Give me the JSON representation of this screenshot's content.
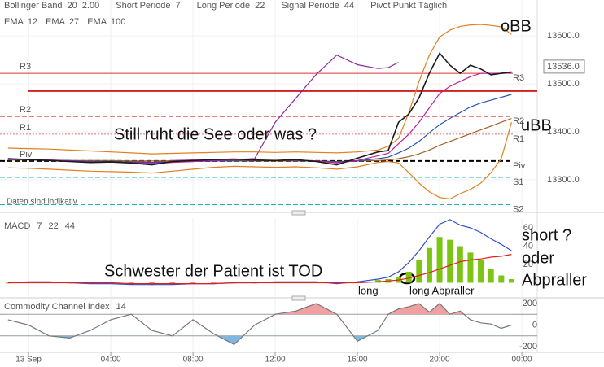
{
  "chart_data": [
    {
      "type": "line",
      "header": [
        {
          "label": "Bollinger Band",
          "params": [
            20,
            "2.00"
          ],
          "param_color": "#e08020"
        },
        {
          "label": "Short Periode",
          "params": [
            7
          ],
          "param_color": "#555555"
        },
        {
          "label": "Long Periode",
          "params": [
            22
          ],
          "param_color": "#555555"
        },
        {
          "label": "Signal Periode",
          "params": [
            44
          ],
          "param_color": "#555555"
        },
        {
          "label": "Pivot Punkt Täglich"
        }
      ],
      "x": [
        -1,
        0,
        1,
        2,
        3,
        4,
        5,
        6,
        7,
        8,
        9,
        10,
        11,
        12,
        13,
        14,
        15,
        16,
        17,
        17.5,
        18,
        18.5,
        19,
        19.5,
        20,
        20.5,
        21,
        21.5,
        22,
        22.5,
        23,
        23.5
      ],
      "series": [
        {
          "color": "#8a2a9a",
          "values": [
            null,
            null,
            null,
            null,
            null,
            null,
            13338,
            13336,
            13340,
            13341,
            13340,
            13342,
            13344,
            13420,
            13470,
            13520,
            13560,
            13540,
            13532,
            13534,
            13545,
            null,
            null,
            null,
            null,
            null,
            null,
            null,
            null,
            null,
            null,
            null
          ]
        },
        {
          "name": "oBB",
          "color": "#e08020",
          "values": [
            13366,
            13365,
            13364,
            13362,
            13360,
            13358,
            13356,
            13354,
            13355,
            13356,
            13357,
            13358,
            13358,
            13357,
            13358,
            13357,
            13356,
            13358,
            13362,
            13370,
            13386,
            13440,
            13505,
            13560,
            13598,
            13612,
            13620,
            13623,
            13624,
            13622,
            13619,
            13603
          ]
        },
        {
          "name": "uBB",
          "color": "#e08020",
          "values": [
            13325,
            13324,
            13322,
            13320,
            13318,
            13317,
            13316,
            13314,
            13318,
            13322,
            13326,
            13328,
            13327,
            13326,
            13327,
            13325,
            13322,
            13327,
            13336,
            13338,
            13335,
            13315,
            13293,
            13275,
            13263,
            13260,
            13271,
            13280,
            13293,
            13315,
            13344,
            13420
          ]
        },
        {
          "name": "EMA",
          "period": 100,
          "color": "#a06020",
          "values": [
            13341,
            13341,
            13341,
            13340,
            13340,
            13340,
            13339,
            13339,
            13339,
            13339,
            13339,
            13339,
            13339,
            13339,
            13339,
            13339,
            13338,
            13339,
            13340,
            13341,
            13344,
            13348,
            13354,
            13362,
            13372,
            13380,
            13388,
            13396,
            13404,
            13412,
            13420,
            13428
          ]
        },
        {
          "name": "EMA",
          "period": 27,
          "color": "#2a50b0",
          "values": [
            13342,
            13342,
            13341,
            13340,
            13338,
            13338,
            13337,
            13336,
            13337,
            13338,
            13339,
            13340,
            13340,
            13340,
            13340,
            13339,
            13337,
            13339,
            13344,
            13347,
            13356,
            13366,
            13380,
            13398,
            13415,
            13428,
            13440,
            13452,
            13460,
            13466,
            13472,
            13478
          ]
        },
        {
          "name": "EMA",
          "period": 12,
          "color": "#c0209a",
          "values": [
            13343,
            13342,
            13341,
            13339,
            13337,
            13337,
            13336,
            13334,
            13336,
            13338,
            13340,
            13342,
            13341,
            13340,
            13341,
            13339,
            13335,
            13340,
            13350,
            13355,
            13375,
            13395,
            13420,
            13450,
            13480,
            13495,
            13505,
            13515,
            13522,
            13522,
            13522,
            13523
          ]
        },
        {
          "color": "#1a1a1a",
          "values": [
            13344,
            13342,
            13340,
            13338,
            13336,
            13337,
            13335,
            13331,
            13338,
            13340,
            13342,
            13343,
            13341,
            13340,
            13342,
            13338,
            13331,
            13345,
            13358,
            13361,
            13420,
            13437,
            13471,
            13522,
            13564,
            13539,
            13522,
            13539,
            13531,
            13519,
            13522,
            13525
          ]
        }
      ],
      "levels": [
        {
          "name": "R3",
          "value": 13522,
          "color": "#e03030",
          "style": "solid",
          "left": true
        },
        {
          "name": "R2",
          "value": 13432,
          "color": "#e03030",
          "style": "dashed",
          "left": true
        },
        {
          "name": "R1",
          "value": 13395,
          "color": "#e07070",
          "style": "dotted",
          "left": true
        },
        {
          "name": "Piv",
          "value": 13339,
          "color": "#000000",
          "style": "dashed",
          "left": true
        },
        {
          "name": "S1",
          "value": 13305,
          "color": "#20b0c0",
          "style": "dashed"
        },
        {
          "name": "S2",
          "value": 13248,
          "color": "#20b0c0",
          "style": "dashed"
        }
      ],
      "reference_line": 13485,
      "ylim": [
        13237,
        13675
      ],
      "yticks": [
        {
          "value": 13300,
          "label": "13300.0"
        },
        {
          "value": 13400,
          "label": "13400.0"
        },
        {
          "value": 13500,
          "label": "13500.0"
        },
        {
          "value": 13600,
          "label": "13600.0"
        }
      ],
      "last_value": {
        "value": 13536,
        "label": "13536.0"
      },
      "annotations": [
        "Still ruht die See oder was ?",
        "Daten sind indikativ"
      ]
    },
    {
      "type": "macd",
      "title": "MACD",
      "params": [
        7,
        22,
        44
      ],
      "param_color": "#c03030",
      "x": [
        -1,
        0,
        1,
        2,
        3,
        4,
        5,
        6,
        7,
        8,
        9,
        10,
        11,
        12,
        13,
        14,
        15,
        16,
        17,
        17.5,
        18,
        18.5,
        19,
        19.5,
        20,
        20.5,
        21,
        21.5,
        22,
        22.5,
        23,
        23.5
      ],
      "histogram": [
        0,
        1,
        1,
        0,
        -1,
        -1,
        -2,
        -2,
        -2,
        -1,
        -1,
        0,
        0,
        1,
        1,
        1,
        -1,
        1,
        3,
        4,
        6,
        12,
        25,
        38,
        50,
        47,
        40,
        33,
        25,
        15,
        8,
        4
      ],
      "up_color": "#7cc514",
      "down_color": "#c03030",
      "series": [
        {
          "color": "#3050d0",
          "values": [
            0,
            1,
            1,
            0,
            -1,
            -1,
            -2,
            -2,
            -2,
            -1,
            -1,
            0,
            0,
            1,
            1,
            1,
            -1,
            1,
            4,
            6,
            12,
            22,
            35,
            50,
            64,
            69,
            63,
            60,
            55,
            48,
            42,
            35
          ]
        },
        {
          "color": "#e02020",
          "values": [
            0,
            0,
            0,
            0,
            0,
            0,
            -1,
            -1,
            -1,
            -1,
            -1,
            0,
            0,
            0,
            0,
            0,
            0,
            0,
            1,
            2,
            3,
            5,
            8,
            11,
            15,
            19,
            23,
            25,
            26,
            28,
            29,
            31
          ]
        }
      ],
      "ylim": [
        -15.6,
        70.7
      ],
      "yticks": [
        20,
        40,
        60
      ],
      "annotations": [
        "Schwester der Patient ist TOD",
        "long",
        "long Abpraller",
        "short ?",
        "oder",
        "Abpraller"
      ]
    },
    {
      "type": "cci",
      "title": "Commodity Channel Index",
      "params": [
        14
      ],
      "x": [
        -1,
        0,
        1,
        2,
        3,
        4,
        5,
        6,
        7,
        8,
        9,
        10,
        11,
        12,
        13,
        14,
        15,
        16,
        17,
        17.5,
        18,
        18.5,
        19,
        19.5,
        20,
        20.5,
        21,
        21.5,
        22,
        22.5,
        23,
        23.5
      ],
      "values": [
        50,
        0,
        -100,
        -120,
        -50,
        50,
        100,
        -50,
        -100,
        50,
        -80,
        -180,
        0,
        100,
        130,
        200,
        100,
        -150,
        -50,
        100,
        150,
        170,
        200,
        120,
        200,
        100,
        130,
        50,
        20,
        10,
        -30,
        0
      ],
      "color": "#777777",
      "over_color": "#f0a0a0",
      "under_color": "#80b8e0",
      "bands": [
        100,
        -100
      ],
      "ylim": [
        -245,
        245
      ],
      "yticks": [
        -200,
        0,
        200
      ],
      "xlim": [
        -1.39,
        24.75
      ],
      "xticks": [
        {
          "value": 0,
          "label": "13 Sep"
        },
        {
          "value": 4,
          "label": "04:00"
        },
        {
          "value": 8,
          "label": "08:00"
        },
        {
          "value": 12,
          "label": "12:00"
        },
        {
          "value": 16,
          "label": "16:00"
        },
        {
          "value": 20,
          "label": "20:00"
        },
        {
          "value": 24,
          "label": "00:00"
        }
      ]
    }
  ]
}
